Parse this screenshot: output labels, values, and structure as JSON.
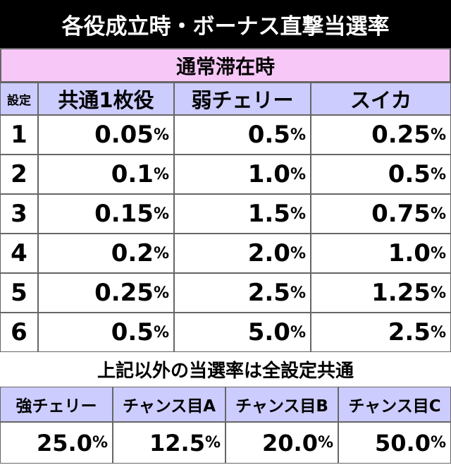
{
  "title": "各役成立時・ボーナス直撃当選率",
  "section": "通常滞在時",
  "unit": "%",
  "table": {
    "header": [
      "設定",
      "共通1枚役",
      "弱チェリー",
      "スイカ"
    ],
    "rows": [
      [
        "1",
        "0.05",
        "0.5",
        "0.25"
      ],
      [
        "2",
        "0.1",
        "1.0",
        "0.5"
      ],
      [
        "3",
        "0.15",
        "1.5",
        "0.75"
      ],
      [
        "4",
        "0.2",
        "2.0",
        "1.0"
      ],
      [
        "5",
        "0.25",
        "2.5",
        "1.25"
      ],
      [
        "6",
        "0.5",
        "5.0",
        "2.5"
      ]
    ]
  },
  "note": "上記以外の当選率は全設定共通",
  "common_table": {
    "header": [
      "強チェリー",
      "チャンス目A",
      "チャンス目B",
      "チャンス目C"
    ],
    "values": [
      "25.0",
      "12.5",
      "20.0",
      "50.0"
    ]
  }
}
